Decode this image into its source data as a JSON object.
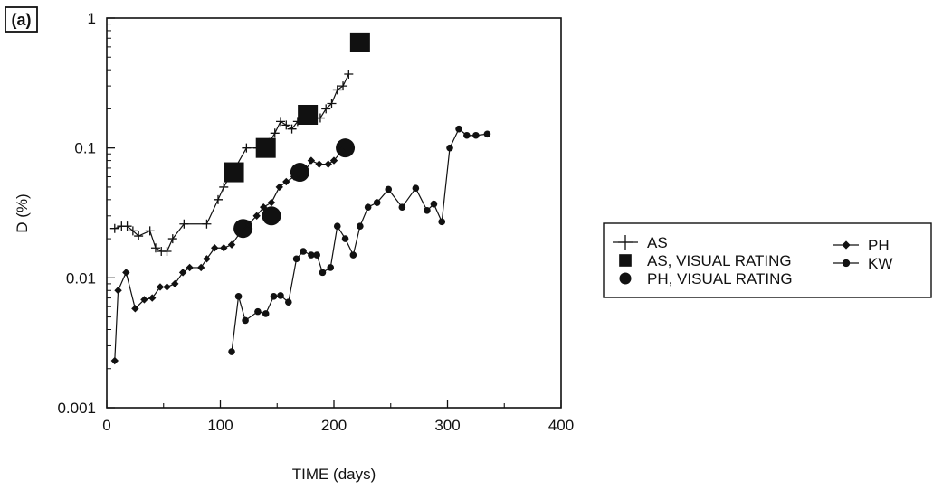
{
  "chart_data": {
    "type": "line",
    "panel_label": "(a)",
    "xlabel": "TIME (days)",
    "ylabel": "D (%)",
    "xlim": [
      0,
      400
    ],
    "ylim": [
      0.001,
      1
    ],
    "yscale": "log",
    "x_ticks": [
      0,
      100,
      200,
      300,
      400
    ],
    "x_tick_labels": [
      "0",
      "100",
      "200",
      "300",
      "400"
    ],
    "y_ticks": [
      0.001,
      0.01,
      0.1,
      1
    ],
    "y_tick_labels": [
      "0.001",
      "0.01",
      "0.1",
      "1"
    ],
    "grid": false,
    "legend_position": "right",
    "series": [
      {
        "name": "AS",
        "marker": "plus",
        "line": true,
        "color": "#111111",
        "x": [
          7,
          13,
          18,
          23,
          28,
          38,
          43,
          48,
          53,
          58,
          68,
          88,
          98,
          103,
          108,
          113,
          123,
          133,
          138,
          143,
          148,
          153,
          158,
          163,
          168,
          173,
          178,
          183,
          188,
          193,
          198,
          203,
          208,
          213
        ],
        "y": [
          0.024,
          0.025,
          0.025,
          0.023,
          0.021,
          0.023,
          0.017,
          0.016,
          0.016,
          0.02,
          0.026,
          0.026,
          0.04,
          0.05,
          0.06,
          0.07,
          0.1,
          0.1,
          0.1,
          0.11,
          0.13,
          0.16,
          0.15,
          0.14,
          0.16,
          0.18,
          0.17,
          0.17,
          0.17,
          0.2,
          0.22,
          0.28,
          0.3,
          0.37
        ]
      },
      {
        "name": "AS, VISUAL RATING",
        "marker": "square",
        "line": false,
        "color": "#111111",
        "x": [
          112,
          140,
          177,
          223
        ],
        "y": [
          0.065,
          0.1,
          0.18,
          0.65
        ]
      },
      {
        "name": "PH, VISUAL RATING",
        "marker": "circle",
        "line": false,
        "color": "#111111",
        "x": [
          120,
          145,
          170,
          210
        ],
        "y": [
          0.024,
          0.03,
          0.065,
          0.1
        ]
      },
      {
        "name": "PH",
        "marker": "diamond",
        "line": true,
        "color": "#111111",
        "x": [
          7,
          10,
          17,
          25,
          33,
          40,
          47,
          53,
          60,
          67,
          73,
          83,
          88,
          95,
          103,
          110,
          117,
          125,
          132,
          138,
          145,
          152,
          158,
          165,
          172,
          180,
          187,
          195,
          200,
          207
        ],
        "y": [
          0.0023,
          0.008,
          0.011,
          0.0058,
          0.0068,
          0.007,
          0.0085,
          0.0085,
          0.009,
          0.011,
          0.012,
          0.012,
          0.014,
          0.017,
          0.017,
          0.018,
          0.022,
          0.026,
          0.03,
          0.035,
          0.038,
          0.05,
          0.055,
          0.06,
          0.06,
          0.08,
          0.075,
          0.075,
          0.08,
          0.095
        ]
      },
      {
        "name": "KW",
        "marker": "dot",
        "line": true,
        "color": "#111111",
        "x": [
          110,
          116,
          122,
          133,
          140,
          147,
          153,
          160,
          167,
          173,
          180,
          185,
          190,
          197,
          203,
          210,
          217,
          223,
          230,
          238,
          248,
          260,
          272,
          282,
          288,
          295,
          302,
          310,
          317,
          325,
          335
        ],
        "y": [
          0.0027,
          0.0072,
          0.0047,
          0.0055,
          0.0053,
          0.0072,
          0.0073,
          0.0065,
          0.014,
          0.016,
          0.015,
          0.015,
          0.011,
          0.012,
          0.025,
          0.02,
          0.015,
          0.025,
          0.035,
          0.038,
          0.048,
          0.035,
          0.049,
          0.033,
          0.037,
          0.027,
          0.1,
          0.14,
          0.125,
          0.125,
          0.128
        ]
      }
    ],
    "legend_entries": [
      "AS",
      "AS, VISUAL RATING",
      "PH, VISUAL RATING",
      "PH",
      "KW"
    ]
  }
}
